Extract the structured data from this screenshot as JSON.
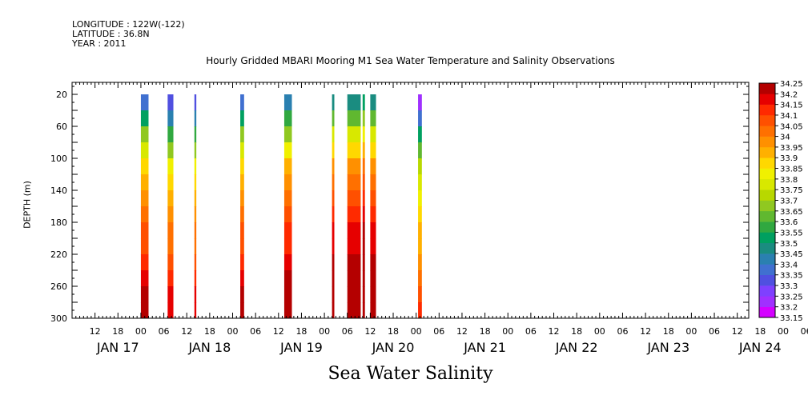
{
  "header": {
    "longitude": "LONGITUDE : 122W(-122)",
    "latitude": "LATITUDE : 36.8N",
    "year": "YEAR : 2011"
  },
  "footer_title": "Sea Water Salinity",
  "chart_data": {
    "type": "heatmap",
    "title": "Hourly Gridded MBARI Mooring M1 Sea Water Temperature and Salinity Observations",
    "ylabel": "DEPTH (m)",
    "xlabel": "",
    "x_hour_ticks": [
      "12",
      "18",
      "00",
      "06",
      "12",
      "18",
      "00",
      "06",
      "12",
      "18",
      "00",
      "06",
      "12",
      "18",
      "00",
      "06",
      "12",
      "18",
      "00",
      "06",
      "12",
      "18",
      "00",
      "06",
      "12",
      "18",
      "00",
      "06",
      "12",
      "18",
      "00",
      "06"
    ],
    "x_day_labels": [
      "JAN 17",
      "JAN 18",
      "JAN 19",
      "JAN 20",
      "JAN 21",
      "JAN 22",
      "JAN 23",
      "JAN 24"
    ],
    "x_range_hours": [
      0,
      177
    ],
    "y_ticks": [
      20,
      60,
      100,
      140,
      180,
      220,
      260,
      300
    ],
    "y_range": [
      300,
      5
    ],
    "colorbar": {
      "levels": [
        33.15,
        33.2,
        33.25,
        33.3,
        33.35,
        33.4,
        33.45,
        33.5,
        33.55,
        33.6,
        33.65,
        33.7,
        33.75,
        33.8,
        33.85,
        33.9,
        33.95,
        34,
        34.05,
        34.1,
        34.15,
        34.2,
        34.25
      ],
      "labels": [
        "33.15",
        "33.2",
        "33.25",
        "33.3",
        "33.35",
        "33.4",
        "33.45",
        "33.5",
        "33.55",
        "33.6",
        "33.65",
        "33.7",
        "33.75",
        "33.8",
        "33.85",
        "33.9",
        "33.95",
        "34",
        "34.05",
        "34.1",
        "34.15",
        "34.2",
        "34.25"
      ],
      "colors": [
        "#d400ff",
        "#a030ff",
        "#7f40ff",
        "#5050e0",
        "#4070d0",
        "#2a80b0",
        "#1a8c80",
        "#00a060",
        "#30a840",
        "#60b830",
        "#90c820",
        "#b8d800",
        "#d8e800",
        "#f0f000",
        "#ffd800",
        "#ffb000",
        "#ff9000",
        "#ff7000",
        "#ff5000",
        "#ff2a00",
        "#e60000",
        "#b40000"
      ]
    },
    "observation_blocks": [
      {
        "start_hour": 18,
        "end_hour": 20,
        "surface_salinity": 33.35
      },
      {
        "start_hour": 25,
        "end_hour": 26.5,
        "surface_salinity": 33.3
      },
      {
        "start_hour": 32,
        "end_hour": 32.5,
        "surface_salinity": 33.3
      },
      {
        "start_hour": 44,
        "end_hour": 45,
        "surface_salinity": 33.35
      },
      {
        "start_hour": 55.5,
        "end_hour": 57.5,
        "surface_salinity": 33.4
      },
      {
        "start_hour": 68,
        "end_hour": 68.6,
        "surface_salinity": 33.45
      },
      {
        "start_hour": 72,
        "end_hour": 75.5,
        "surface_salinity": 33.45
      },
      {
        "start_hour": 76,
        "end_hour": 76.6,
        "surface_salinity": 33.5
      },
      {
        "start_hour": 78,
        "end_hour": 79.5,
        "surface_salinity": 33.45
      },
      {
        "start_hour": 90.5,
        "end_hour": 91.5,
        "surface_salinity": 33.2
      }
    ]
  }
}
